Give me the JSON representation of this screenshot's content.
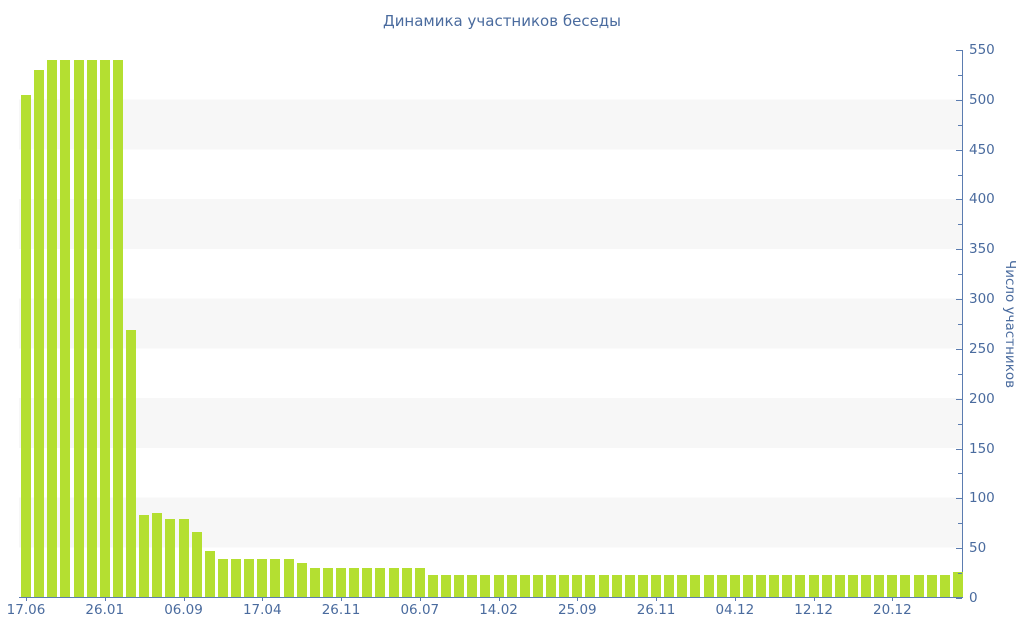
{
  "title": "Динамика участников беседы",
  "y_axis_title": "Число участников",
  "colors": {
    "bar": "#b4df31",
    "band": "#f7f7f7",
    "axis": "#5b7cb0",
    "text": "#4a6b9e",
    "background": "#ffffff"
  },
  "chart_data": {
    "type": "bar",
    "title": "Динамика участников беседы",
    "xlabel": "",
    "ylabel": "Число участников",
    "ylim": [
      0,
      550
    ],
    "y_tick_step": 50,
    "y_minor_tick_step": 25,
    "y_tick_labels": [
      "0",
      "50",
      "100",
      "150",
      "200",
      "250",
      "300",
      "350",
      "400",
      "450",
      "500",
      "550"
    ],
    "grid": "alternating horizontal bands every 50 units",
    "legend_position": "none",
    "x_label_interval": 6,
    "x_tick_labels": [
      "17.06",
      "26.01",
      "06.09",
      "17.04",
      "26.11",
      "06.07",
      "14.02",
      "25.09",
      "26.11",
      "04.12",
      "12.12",
      "20.12"
    ],
    "values": [
      505,
      530,
      540,
      540,
      540,
      540,
      540,
      540,
      268,
      82,
      84,
      78,
      78,
      65,
      46,
      38,
      38,
      38,
      38,
      38,
      38,
      34,
      29,
      29,
      29,
      29,
      29,
      29,
      29,
      29,
      29,
      22,
      22,
      22,
      22,
      22,
      22,
      22,
      22,
      22,
      22,
      22,
      22,
      22,
      22,
      22,
      22,
      22,
      22,
      22,
      22,
      22,
      22,
      22,
      22,
      22,
      22,
      22,
      22,
      22,
      22,
      22,
      22,
      22,
      22,
      22,
      22,
      22,
      22,
      22,
      22,
      25
    ]
  }
}
